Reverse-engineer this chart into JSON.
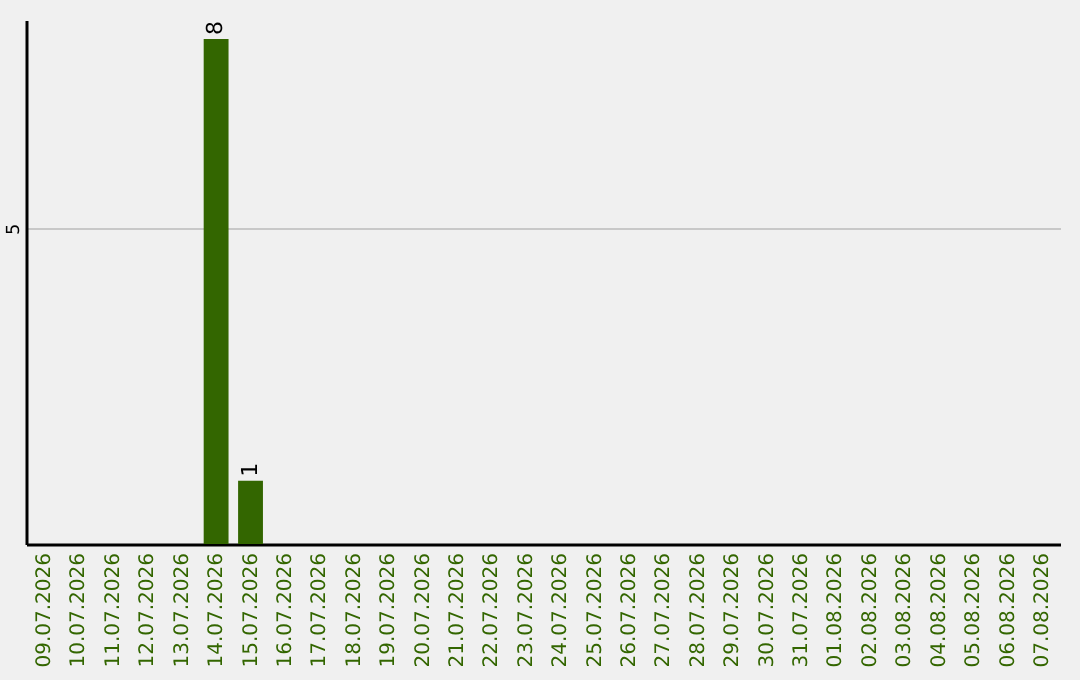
{
  "chart_data": {
    "type": "bar",
    "categories": [
      "09.07.2026",
      "10.07.2026",
      "11.07.2026",
      "12.07.2026",
      "13.07.2026",
      "14.07.2026",
      "15.07.2026",
      "16.07.2026",
      "17.07.2026",
      "18.07.2026",
      "19.07.2026",
      "20.07.2026",
      "21.07.2026",
      "22.07.2026",
      "23.07.2026",
      "24.07.2026",
      "25.07.2026",
      "26.07.2026",
      "27.07.2026",
      "28.07.2026",
      "29.07.2026",
      "30.07.2026",
      "31.07.2026",
      "01.08.2026",
      "02.08.2026",
      "03.08.2026",
      "04.08.2026",
      "05.08.2026",
      "06.08.2026",
      "07.08.2026"
    ],
    "values": [
      0,
      0,
      0,
      0,
      0,
      8,
      1,
      0,
      0,
      0,
      0,
      0,
      0,
      0,
      0,
      0,
      0,
      0,
      0,
      0,
      0,
      0,
      0,
      0,
      0,
      0,
      0,
      0,
      0,
      0
    ],
    "value_labels": [
      null,
      null,
      null,
      null,
      null,
      "8",
      "1",
      null,
      null,
      null,
      null,
      null,
      null,
      null,
      null,
      null,
      null,
      null,
      null,
      null,
      null,
      null,
      null,
      null,
      null,
      null,
      null,
      null,
      null,
      null
    ],
    "color": "#336600",
    "ylim": [
      0,
      8.3
    ],
    "yticks": [
      5
    ],
    "grid": "y"
  }
}
